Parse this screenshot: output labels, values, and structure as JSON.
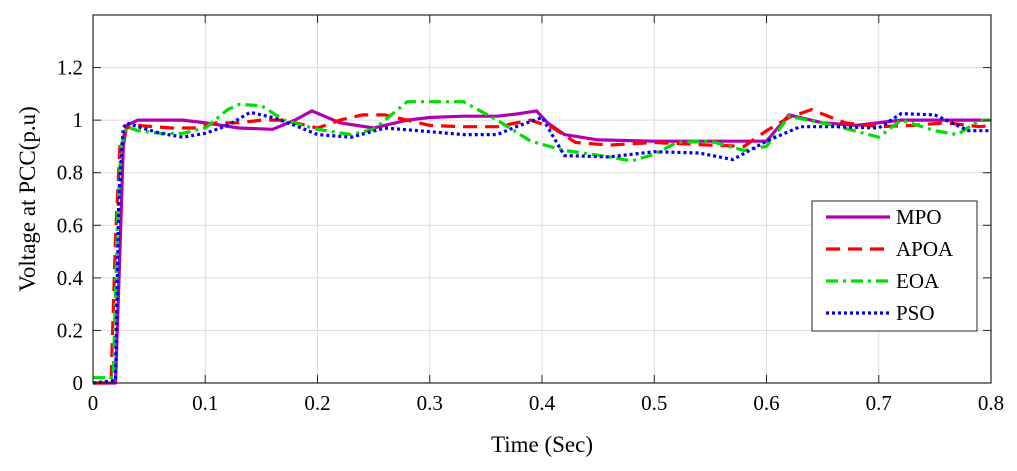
{
  "chart_data": {
    "type": "line",
    "title": "",
    "xlabel": "Time (Sec)",
    "ylabel": "Voltage at PCC(p.u)",
    "xlim": [
      0,
      0.8
    ],
    "ylim": [
      0,
      1.4
    ],
    "xticks": [
      0,
      0.1,
      0.2,
      0.3,
      0.4,
      0.5,
      0.6,
      0.7,
      0.8
    ],
    "xtick_labels": [
      "0",
      "0.1",
      "0.2",
      "0.3",
      "0.4",
      "0.5",
      "0.6",
      "0.7",
      "0.8"
    ],
    "yticks": [
      0,
      0.2,
      0.4,
      0.6,
      0.8,
      1,
      1.2
    ],
    "ytick_labels": [
      "0",
      "0.2",
      "0.4",
      "0.6",
      "0.8",
      "1",
      "1.2"
    ],
    "grid": true,
    "legend_position": "right",
    "series": [
      {
        "name": "MPO",
        "color": "#b000b0",
        "style": "solid",
        "x": [
          0,
          0.02,
          0.024,
          0.027,
          0.03,
          0.04,
          0.06,
          0.08,
          0.1,
          0.13,
          0.16,
          0.18,
          0.195,
          0.22,
          0.25,
          0.28,
          0.3,
          0.33,
          0.36,
          0.38,
          0.395,
          0.405,
          0.42,
          0.45,
          0.5,
          0.55,
          0.58,
          0.6,
          0.62,
          0.65,
          0.68,
          0.72,
          0.76,
          0.8
        ],
        "values": [
          0,
          0,
          0.5,
          0.9,
          0.98,
          1.0,
          1.0,
          1.0,
          0.99,
          0.97,
          0.965,
          1.0,
          1.035,
          0.99,
          0.97,
          1.0,
          1.01,
          1.015,
          1.015,
          1.025,
          1.035,
          0.99,
          0.945,
          0.925,
          0.92,
          0.92,
          0.92,
          0.92,
          1.02,
          0.99,
          0.98,
          1.0,
          1.0,
          1.0
        ]
      },
      {
        "name": "APOA",
        "color": "#ff0000",
        "style": "dashed",
        "x": [
          0,
          0.016,
          0.02,
          0.024,
          0.03,
          0.04,
          0.07,
          0.09,
          0.11,
          0.13,
          0.15,
          0.17,
          0.2,
          0.22,
          0.24,
          0.26,
          0.3,
          0.33,
          0.36,
          0.39,
          0.41,
          0.43,
          0.46,
          0.5,
          0.55,
          0.58,
          0.6,
          0.62,
          0.64,
          0.67,
          0.7,
          0.73,
          0.76,
          0.79,
          0.8
        ],
        "values": [
          0,
          0,
          0.55,
          0.9,
          0.97,
          0.98,
          0.97,
          0.97,
          0.99,
          0.99,
          1.0,
          1.0,
          0.97,
          1.0,
          1.02,
          1.02,
          0.98,
          0.975,
          0.975,
          1.0,
          0.97,
          0.915,
          0.905,
          0.915,
          0.905,
          0.9,
          0.96,
          1.01,
          1.04,
          0.99,
          0.975,
          0.98,
          0.99,
          0.975,
          0.98
        ]
      },
      {
        "name": "EOA",
        "color": "#00dd00",
        "style": "dashdot",
        "x": [
          0,
          0.018,
          0.022,
          0.025,
          0.03,
          0.04,
          0.06,
          0.08,
          0.1,
          0.12,
          0.13,
          0.15,
          0.17,
          0.2,
          0.23,
          0.25,
          0.26,
          0.28,
          0.33,
          0.36,
          0.39,
          0.42,
          0.46,
          0.48,
          0.5,
          0.52,
          0.55,
          0.58,
          0.6,
          0.62,
          0.66,
          0.7,
          0.72,
          0.75,
          0.77,
          0.79,
          0.8
        ],
        "values": [
          0.02,
          0.02,
          0.65,
          0.9,
          0.975,
          0.96,
          0.95,
          0.95,
          0.97,
          1.04,
          1.06,
          1.055,
          1.0,
          0.965,
          0.945,
          0.965,
          1.0,
          1.07,
          1.07,
          1.0,
          0.92,
          0.885,
          0.86,
          0.845,
          0.87,
          0.915,
          0.92,
          0.885,
          0.9,
          1.015,
          0.98,
          0.935,
          1.0,
          0.96,
          0.945,
          1.0,
          1.0
        ]
      },
      {
        "name": "PSO",
        "color": "#0000ee",
        "style": "dotted",
        "x": [
          0,
          0.02,
          0.023,
          0.027,
          0.03,
          0.04,
          0.06,
          0.08,
          0.1,
          0.12,
          0.14,
          0.16,
          0.18,
          0.2,
          0.23,
          0.26,
          0.29,
          0.33,
          0.36,
          0.38,
          0.4,
          0.42,
          0.46,
          0.5,
          0.54,
          0.57,
          0.6,
          0.63,
          0.66,
          0.7,
          0.72,
          0.75,
          0.78,
          0.8
        ],
        "values": [
          0,
          0.01,
          0.7,
          0.97,
          0.99,
          0.975,
          0.95,
          0.935,
          0.95,
          0.98,
          1.03,
          1.01,
          0.98,
          0.945,
          0.935,
          0.97,
          0.96,
          0.945,
          0.945,
          0.98,
          1.01,
          0.865,
          0.86,
          0.88,
          0.875,
          0.85,
          0.92,
          0.975,
          0.975,
          0.97,
          1.025,
          1.02,
          0.96,
          0.96
        ]
      }
    ]
  }
}
